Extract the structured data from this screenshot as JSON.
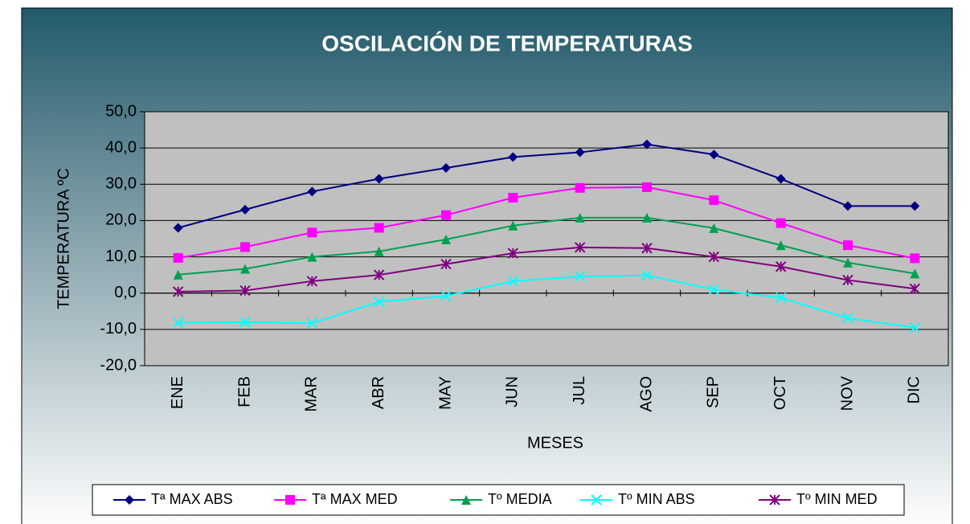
{
  "chart_data": {
    "type": "line",
    "title": "OSCILACIÓN DE TEMPERATURAS",
    "x_label": "MESES",
    "y_label": "TEMPERATURA ºC",
    "categories": [
      "ENE",
      "FEB",
      "MAR",
      "ABR",
      "MAY",
      "JUN",
      "JUL",
      "AGO",
      "SEP",
      "OCT",
      "NOV",
      "DIC"
    ],
    "series": [
      {
        "name": "Tª MAX ABS",
        "color": "#000080",
        "marker": "diamond",
        "values": [
          18,
          23,
          28,
          31.5,
          34.5,
          37.5,
          38.8,
          41,
          38.2,
          31.5,
          24,
          24
        ]
      },
      {
        "name": "Tª MAX MED",
        "color": "#ff00ff",
        "marker": "square",
        "values": [
          9.7,
          12.7,
          16.7,
          18,
          21.5,
          26.3,
          29,
          29.2,
          25.6,
          19.3,
          13.2,
          9.6
        ]
      },
      {
        "name": "Tº MEDIA",
        "color": "#00a050",
        "marker": "triangle",
        "values": [
          5.1,
          6.7,
          10,
          11.5,
          14.8,
          18.6,
          20.8,
          20.8,
          17.9,
          13.2,
          8.4,
          5.4
        ]
      },
      {
        "name": "Tº MIN ABS",
        "color": "#00ffff",
        "marker": "x",
        "values": [
          -8.2,
          -8,
          -8.3,
          -2.4,
          -0.8,
          3.3,
          4.6,
          4.9,
          1,
          -1.3,
          -6.9,
          -9.5
        ]
      },
      {
        "name": "Tº MIN MED",
        "color": "#800080",
        "marker": "star",
        "values": [
          0.4,
          0.7,
          3.3,
          5,
          8,
          11,
          12.6,
          12.4,
          10,
          7.3,
          3.6,
          1.2
        ]
      }
    ],
    "ylim": [
      -20,
      50
    ],
    "yticks": [
      {
        "value": -20,
        "label": "-20,0"
      },
      {
        "value": -10,
        "label": "-10,0"
      },
      {
        "value": 0,
        "label": "0,0"
      },
      {
        "value": 10,
        "label": "10,0"
      },
      {
        "value": 20,
        "label": "20,0"
      },
      {
        "value": 30,
        "label": "30,0"
      },
      {
        "value": 40,
        "label": "40,0"
      },
      {
        "value": 50,
        "label": "50,0"
      }
    ],
    "grid": true,
    "legend": "bottom"
  }
}
